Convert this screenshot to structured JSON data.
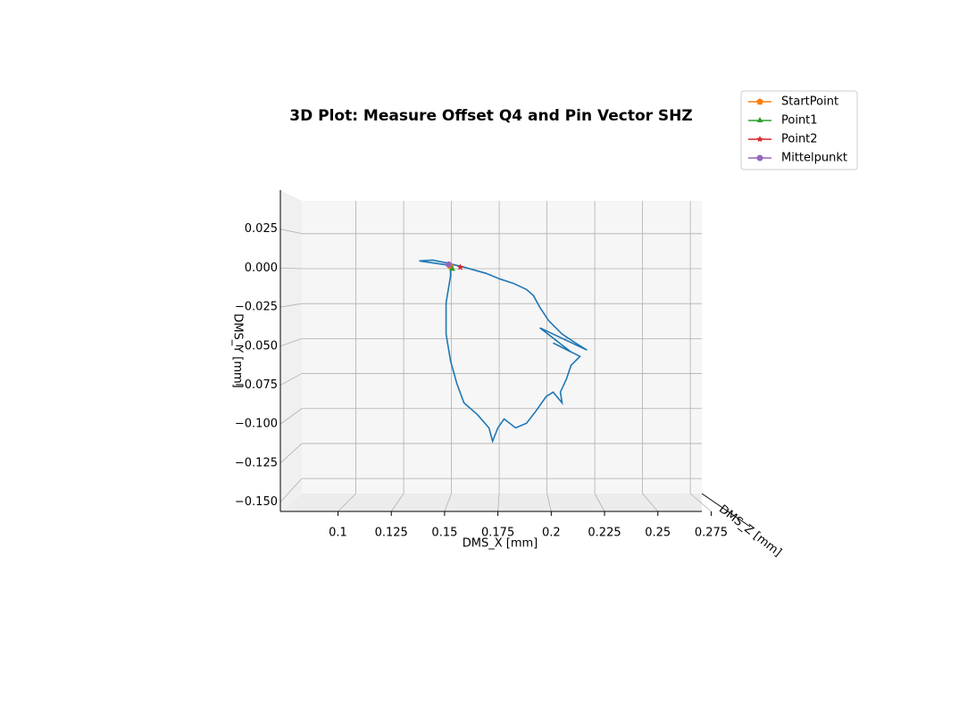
{
  "chart_data": {
    "type": "line3d",
    "title": "3D Plot: Measure Offset Q4 and Pin Vector SHZ",
    "xlabel": "DMS_X [mm]",
    "ylabel": "DMS_Y [mm]",
    "zlabel": "DMS_Z [mm]",
    "xlim": [
      0.073,
      0.279
    ],
    "ylim": [
      -0.156,
      0.05
    ],
    "xticks": [
      0.1,
      0.125,
      0.15,
      0.175,
      0.2,
      0.225,
      0.25,
      0.275
    ],
    "yticks": [
      {
        "value": 0.025,
        "label": "0.025"
      },
      {
        "value": 0,
        "label": "0.000"
      },
      {
        "value": -0.025,
        "label": "−0.025"
      },
      {
        "value": -0.05,
        "label": "−0.050"
      },
      {
        "value": -0.075,
        "label": "−0.075"
      },
      {
        "value": -0.1,
        "label": "−0.100"
      },
      {
        "value": -0.125,
        "label": "−0.125"
      },
      {
        "value": -0.15,
        "label": "−0.150"
      }
    ],
    "grid": true,
    "legend": "upper right",
    "series": [
      {
        "color": "#1f77b4",
        "x": [
          0.1528,
          0.1381,
          0.1444,
          0.1507,
          0.1591,
          0.1695,
          0.1758,
          0.1821,
          0.1884,
          0.1917,
          0.1947,
          0.1988,
          0.2051,
          0.2114,
          0.2168,
          0.1947,
          0.2093,
          0.2009,
          0.2135,
          0.2093,
          0.2072,
          0.2043,
          0.2051,
          0.2009,
          0.1976,
          0.1926,
          0.1884,
          0.1833,
          0.1779,
          0.175,
          0.1725,
          0.1708,
          0.1653,
          0.1591,
          0.1557,
          0.1528,
          0.1507,
          0.1507,
          0.1528,
          0.1528
        ],
        "y": [
          0.0017,
          0.0046,
          0.0051,
          0.0034,
          0.0006,
          -0.0034,
          -0.0069,
          -0.0097,
          -0.0137,
          -0.0177,
          -0.0252,
          -0.0337,
          -0.0423,
          -0.048,
          -0.0526,
          -0.0383,
          -0.0538,
          -0.048,
          -0.0566,
          -0.0623,
          -0.0709,
          -0.0795,
          -0.0864,
          -0.0795,
          -0.0824,
          -0.0921,
          -0.0995,
          -0.1024,
          -0.0967,
          -0.1024,
          -0.111,
          -0.1024,
          -0.0938,
          -0.0864,
          -0.0738,
          -0.0595,
          -0.0423,
          -0.0223,
          -0.0051,
          0.0017
        ]
      },
      {
        "name": "StartPoint",
        "color": "#ff7f0e",
        "marker": "pentagon",
        "x": [
          0.1528
        ],
        "y": [
          0.0011
        ]
      },
      {
        "name": "Point1",
        "color": "#2ca02c",
        "marker": "triangle",
        "x": [
          0.1536
        ],
        "y": [
          -0.0006
        ]
      },
      {
        "name": "Point2",
        "color": "#d62728",
        "marker": "star",
        "x": [
          0.1574
        ],
        "y": [
          0.0006
        ]
      },
      {
        "name": "Mittelpunkt",
        "color": "#9467bd",
        "marker": "circle",
        "x": [
          0.1519
        ],
        "y": [
          0.0023
        ]
      }
    ]
  }
}
